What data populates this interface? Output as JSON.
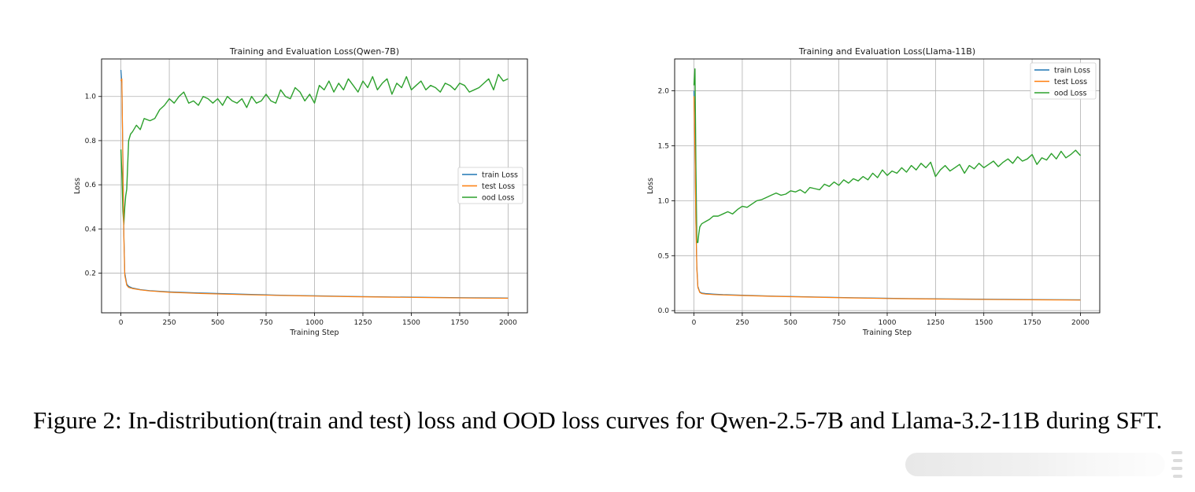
{
  "charts": [
    {
      "title": "Training and Evaluation Loss(Qwen-7B)",
      "xlabel": "Training Step",
      "ylabel": "Loss",
      "xticks": [
        "0",
        "250",
        "500",
        "750",
        "1000",
        "1250",
        "1500",
        "1750",
        "2000"
      ],
      "yticks": [
        "0.2",
        "0.4",
        "0.6",
        "0.8",
        "1.0"
      ],
      "legend": [
        "train Loss",
        "test Loss",
        "ood Loss"
      ]
    },
    {
      "title": "Training and Evaluation Loss(Llama-11B)",
      "xlabel": "Training Step",
      "ylabel": "Loss",
      "xticks": [
        "0",
        "250",
        "500",
        "750",
        "1000",
        "1250",
        "1500",
        "1750",
        "2000"
      ],
      "yticks": [
        "0.0",
        "0.5",
        "1.0",
        "1.5",
        "2.0"
      ],
      "legend": [
        "train Loss",
        "test Loss",
        "ood Loss"
      ]
    }
  ],
  "caption": "Figure 2: In-distribution(train and test) loss and OOD loss curves for Qwen-2.5-7B and Llama-3.2-11B during SFT.",
  "colors": {
    "train": "#1f77b4",
    "test": "#ff7f0e",
    "ood": "#2ca02c",
    "grid": "#b0b0b0"
  },
  "chart_data": [
    {
      "type": "line",
      "title": "Training and Evaluation Loss(Qwen-7B)",
      "xlabel": "Training Step",
      "ylabel": "Loss",
      "xlim": [
        -100,
        2100
      ],
      "ylim": [
        0.02,
        1.17
      ],
      "legend_position": "center-right",
      "grid": true,
      "series": [
        {
          "name": "train Loss",
          "x": [
            0,
            5,
            10,
            15,
            20,
            30,
            40,
            60,
            100,
            150,
            250,
            400,
            600,
            800,
            1000,
            1200,
            1400,
            1600,
            1800,
            2000
          ],
          "y": [
            1.12,
            1.06,
            0.72,
            0.38,
            0.2,
            0.15,
            0.14,
            0.132,
            0.125,
            0.12,
            0.115,
            0.11,
            0.105,
            0.1,
            0.097,
            0.094,
            0.092,
            0.09,
            0.088,
            0.087
          ]
        },
        {
          "name": "test Loss",
          "x": [
            0,
            5,
            10,
            15,
            20,
            30,
            40,
            60,
            100,
            150,
            250,
            400,
            600,
            800,
            1000,
            1200,
            1400,
            1600,
            1800,
            2000
          ],
          "y": [
            1.07,
            1.08,
            0.7,
            0.37,
            0.19,
            0.145,
            0.135,
            0.13,
            0.124,
            0.119,
            0.113,
            0.108,
            0.103,
            0.099,
            0.096,
            0.093,
            0.091,
            0.089,
            0.087,
            0.086
          ]
        },
        {
          "name": "ood Loss",
          "x": [
            0,
            5,
            10,
            15,
            20,
            25,
            30,
            40,
            50,
            60,
            80,
            100,
            120,
            150,
            175,
            200,
            225,
            250,
            275,
            300,
            325,
            350,
            375,
            400,
            425,
            450,
            475,
            500,
            525,
            550,
            575,
            600,
            625,
            650,
            675,
            700,
            725,
            750,
            775,
            800,
            825,
            850,
            875,
            900,
            925,
            950,
            975,
            1000,
            1025,
            1050,
            1075,
            1100,
            1125,
            1150,
            1175,
            1200,
            1225,
            1250,
            1275,
            1300,
            1325,
            1350,
            1375,
            1400,
            1425,
            1450,
            1475,
            1500,
            1525,
            1550,
            1575,
            1600,
            1625,
            1650,
            1675,
            1700,
            1725,
            1750,
            1775,
            1800,
            1825,
            1850,
            1875,
            1900,
            1925,
            1950,
            1975,
            2000
          ],
          "y": [
            0.76,
            0.65,
            0.48,
            0.42,
            0.5,
            0.55,
            0.58,
            0.8,
            0.83,
            0.84,
            0.87,
            0.85,
            0.9,
            0.89,
            0.9,
            0.94,
            0.96,
            0.99,
            0.97,
            1.0,
            1.02,
            0.97,
            0.98,
            0.96,
            1.0,
            0.99,
            0.97,
            0.99,
            0.96,
            1.0,
            0.98,
            0.97,
            0.99,
            0.95,
            1.0,
            0.97,
            0.98,
            1.01,
            0.98,
            0.97,
            1.03,
            1.0,
            0.99,
            1.04,
            1.02,
            0.98,
            1.01,
            0.97,
            1.05,
            1.03,
            1.07,
            1.02,
            1.06,
            1.03,
            1.08,
            1.05,
            1.02,
            1.07,
            1.04,
            1.09,
            1.03,
            1.06,
            1.08,
            1.01,
            1.06,
            1.04,
            1.09,
            1.03,
            1.05,
            1.07,
            1.03,
            1.05,
            1.04,
            1.02,
            1.06,
            1.05,
            1.03,
            1.06,
            1.05,
            1.02,
            1.03,
            1.04,
            1.06,
            1.08,
            1.03,
            1.1,
            1.07,
            1.08
          ]
        }
      ]
    },
    {
      "type": "line",
      "title": "Training and Evaluation Loss(Llama-11B)",
      "xlabel": "Training Step",
      "ylabel": "Loss",
      "xlim": [
        -100,
        2100
      ],
      "ylim": [
        -0.02,
        2.29
      ],
      "legend_position": "top-right",
      "grid": true,
      "series": [
        {
          "name": "train Loss",
          "x": [
            0,
            5,
            10,
            15,
            20,
            30,
            40,
            60,
            100,
            150,
            250,
            400,
            600,
            800,
            1000,
            1200,
            1400,
            1600,
            1800,
            2000
          ],
          "y": [
            2.0,
            1.5,
            0.8,
            0.4,
            0.22,
            0.17,
            0.16,
            0.155,
            0.15,
            0.145,
            0.14,
            0.132,
            0.125,
            0.118,
            0.112,
            0.108,
            0.105,
            0.102,
            0.1,
            0.098
          ]
        },
        {
          "name": "test Loss",
          "x": [
            0,
            5,
            10,
            15,
            20,
            30,
            40,
            60,
            100,
            150,
            250,
            400,
            600,
            800,
            1000,
            1200,
            1400,
            1600,
            1800,
            2000
          ],
          "y": [
            1.95,
            1.45,
            0.78,
            0.38,
            0.21,
            0.165,
            0.155,
            0.15,
            0.146,
            0.142,
            0.137,
            0.13,
            0.123,
            0.116,
            0.11,
            0.106,
            0.103,
            0.1,
            0.098,
            0.096
          ]
        },
        {
          "name": "ood Loss",
          "x": [
            0,
            5,
            10,
            15,
            20,
            25,
            30,
            40,
            50,
            60,
            80,
            100,
            125,
            150,
            175,
            200,
            225,
            250,
            275,
            300,
            325,
            350,
            375,
            400,
            425,
            450,
            475,
            500,
            525,
            550,
            575,
            600,
            625,
            650,
            675,
            700,
            725,
            750,
            775,
            800,
            825,
            850,
            875,
            900,
            925,
            950,
            975,
            1000,
            1025,
            1050,
            1075,
            1100,
            1125,
            1150,
            1175,
            1200,
            1225,
            1250,
            1275,
            1300,
            1325,
            1350,
            1375,
            1400,
            1425,
            1450,
            1475,
            1500,
            1525,
            1550,
            1575,
            1600,
            1625,
            1650,
            1675,
            1700,
            1725,
            1750,
            1775,
            1800,
            1825,
            1850,
            1875,
            1900,
            1925,
            1950,
            1975,
            2000
          ],
          "y": [
            2.05,
            2.2,
            1.3,
            0.62,
            0.62,
            0.7,
            0.76,
            0.79,
            0.8,
            0.81,
            0.83,
            0.86,
            0.86,
            0.88,
            0.9,
            0.88,
            0.92,
            0.95,
            0.94,
            0.97,
            1.0,
            1.01,
            1.03,
            1.05,
            1.07,
            1.05,
            1.06,
            1.09,
            1.08,
            1.1,
            1.07,
            1.12,
            1.11,
            1.1,
            1.15,
            1.13,
            1.17,
            1.14,
            1.19,
            1.16,
            1.2,
            1.18,
            1.22,
            1.19,
            1.25,
            1.21,
            1.28,
            1.23,
            1.27,
            1.25,
            1.3,
            1.26,
            1.32,
            1.28,
            1.34,
            1.3,
            1.35,
            1.22,
            1.28,
            1.32,
            1.27,
            1.3,
            1.33,
            1.25,
            1.32,
            1.29,
            1.34,
            1.3,
            1.33,
            1.36,
            1.31,
            1.35,
            1.38,
            1.34,
            1.4,
            1.36,
            1.38,
            1.42,
            1.33,
            1.39,
            1.37,
            1.43,
            1.38,
            1.45,
            1.39,
            1.42,
            1.46,
            1.41
          ]
        }
      ]
    }
  ]
}
